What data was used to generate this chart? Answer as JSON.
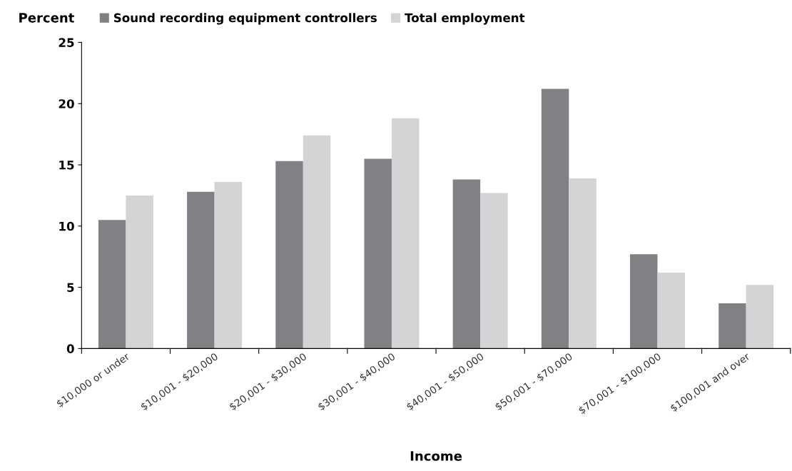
{
  "chart_data": {
    "type": "bar",
    "xlabel": "Income",
    "ylabel": "Percent",
    "categories": [
      "$10,000 or under",
      "$10,001 - $20,000",
      "$20,001 - $30,000",
      "$30,001 - $40,000",
      "$40,001 - $50,000",
      "$50,001 - $70,000",
      "$70,001 - $100,000",
      "$100,001 and over"
    ],
    "series": [
      {
        "name": "Sound recording equipment controllers",
        "color": "#808085",
        "values": [
          10.5,
          12.8,
          15.3,
          15.5,
          13.8,
          21.2,
          7.7,
          3.7
        ]
      },
      {
        "name": "Total employment",
        "color": "#d3d4d6",
        "values": [
          12.5,
          13.6,
          17.4,
          18.8,
          12.7,
          13.9,
          6.2,
          5.2
        ]
      }
    ],
    "ylim": [
      0,
      25
    ],
    "yticks": [
      0,
      5,
      10,
      15,
      20,
      25
    ],
    "grid": false,
    "legend": "top"
  }
}
